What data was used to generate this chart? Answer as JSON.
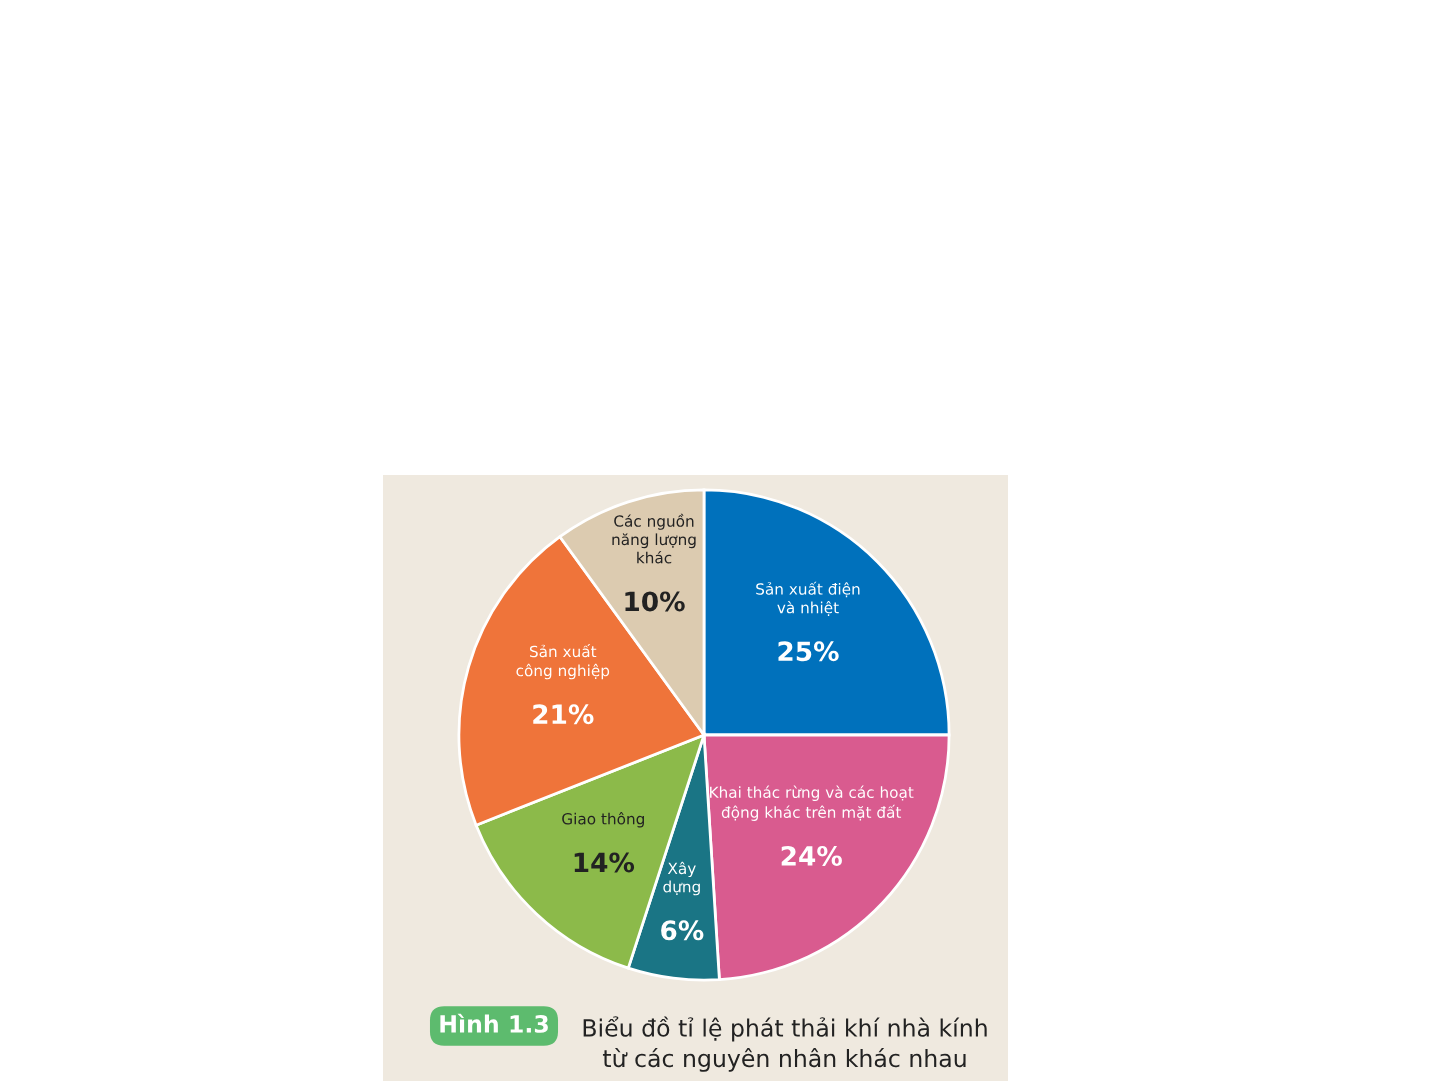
{
  "chart_data": {
    "type": "pie",
    "title": "Biểu đồ tỉ lệ phát thải khí nhà kính\ntừ các nguyên nhân khác nhau",
    "annotations": [
      "Hình 1.3"
    ],
    "categories": [
      "Sản xuất điện\nvà nhiệt",
      "Khai thác rừng và các hoạt\nđộng khác trên mặt đất",
      "Xây\ndựng",
      "Giao thông",
      "Sản xuất\ncông nghiệp",
      "Các nguồn\nnăng lượng\nkhác"
    ],
    "values": [
      25,
      24,
      6,
      14,
      21,
      10
    ],
    "value_labels": [
      "25%",
      "24%",
      "6%",
      "14%",
      "21%",
      "10%"
    ],
    "colors": [
      "#0071bc",
      "#d95b8f",
      "#1a7585",
      "#8cba4a",
      "#ef743a",
      "#dccbb0"
    ]
  }
}
